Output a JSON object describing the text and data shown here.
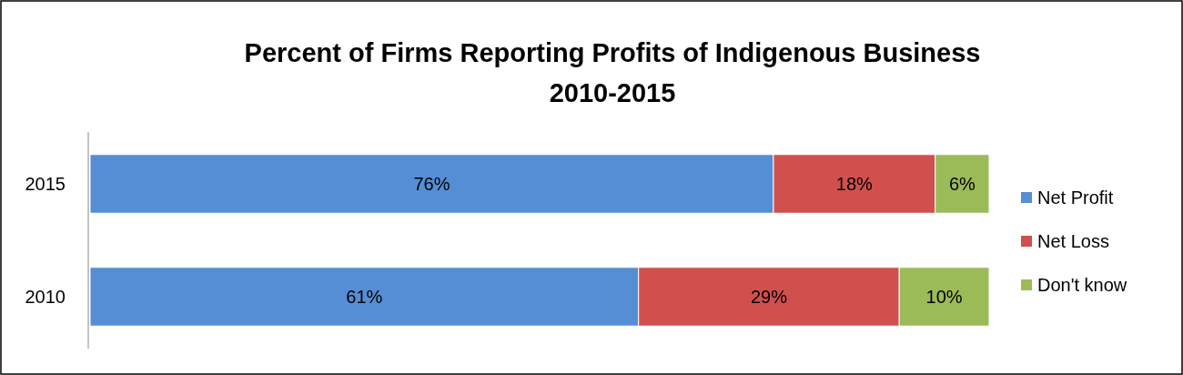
{
  "chart_data": {
    "type": "bar",
    "orientation": "horizontal",
    "stacked": true,
    "title": "Percent of Firms Reporting Profits of Indigenous Business\n2010-2015",
    "categories": [
      "2015",
      "2010"
    ],
    "legend": "right",
    "series": [
      {
        "name": "Net Profit",
        "color": "#558ed5",
        "values": [
          76,
          61
        ],
        "value_labels": [
          "76%",
          "61%"
        ]
      },
      {
        "name": "Net Loss",
        "color": "#d0504d",
        "values": [
          18,
          29
        ],
        "value_labels": [
          "18%",
          "29%"
        ]
      },
      {
        "name": "Don't know",
        "color": "#9bbb59",
        "values": [
          6,
          10
        ],
        "value_labels": [
          "6%",
          "10%"
        ]
      }
    ]
  }
}
